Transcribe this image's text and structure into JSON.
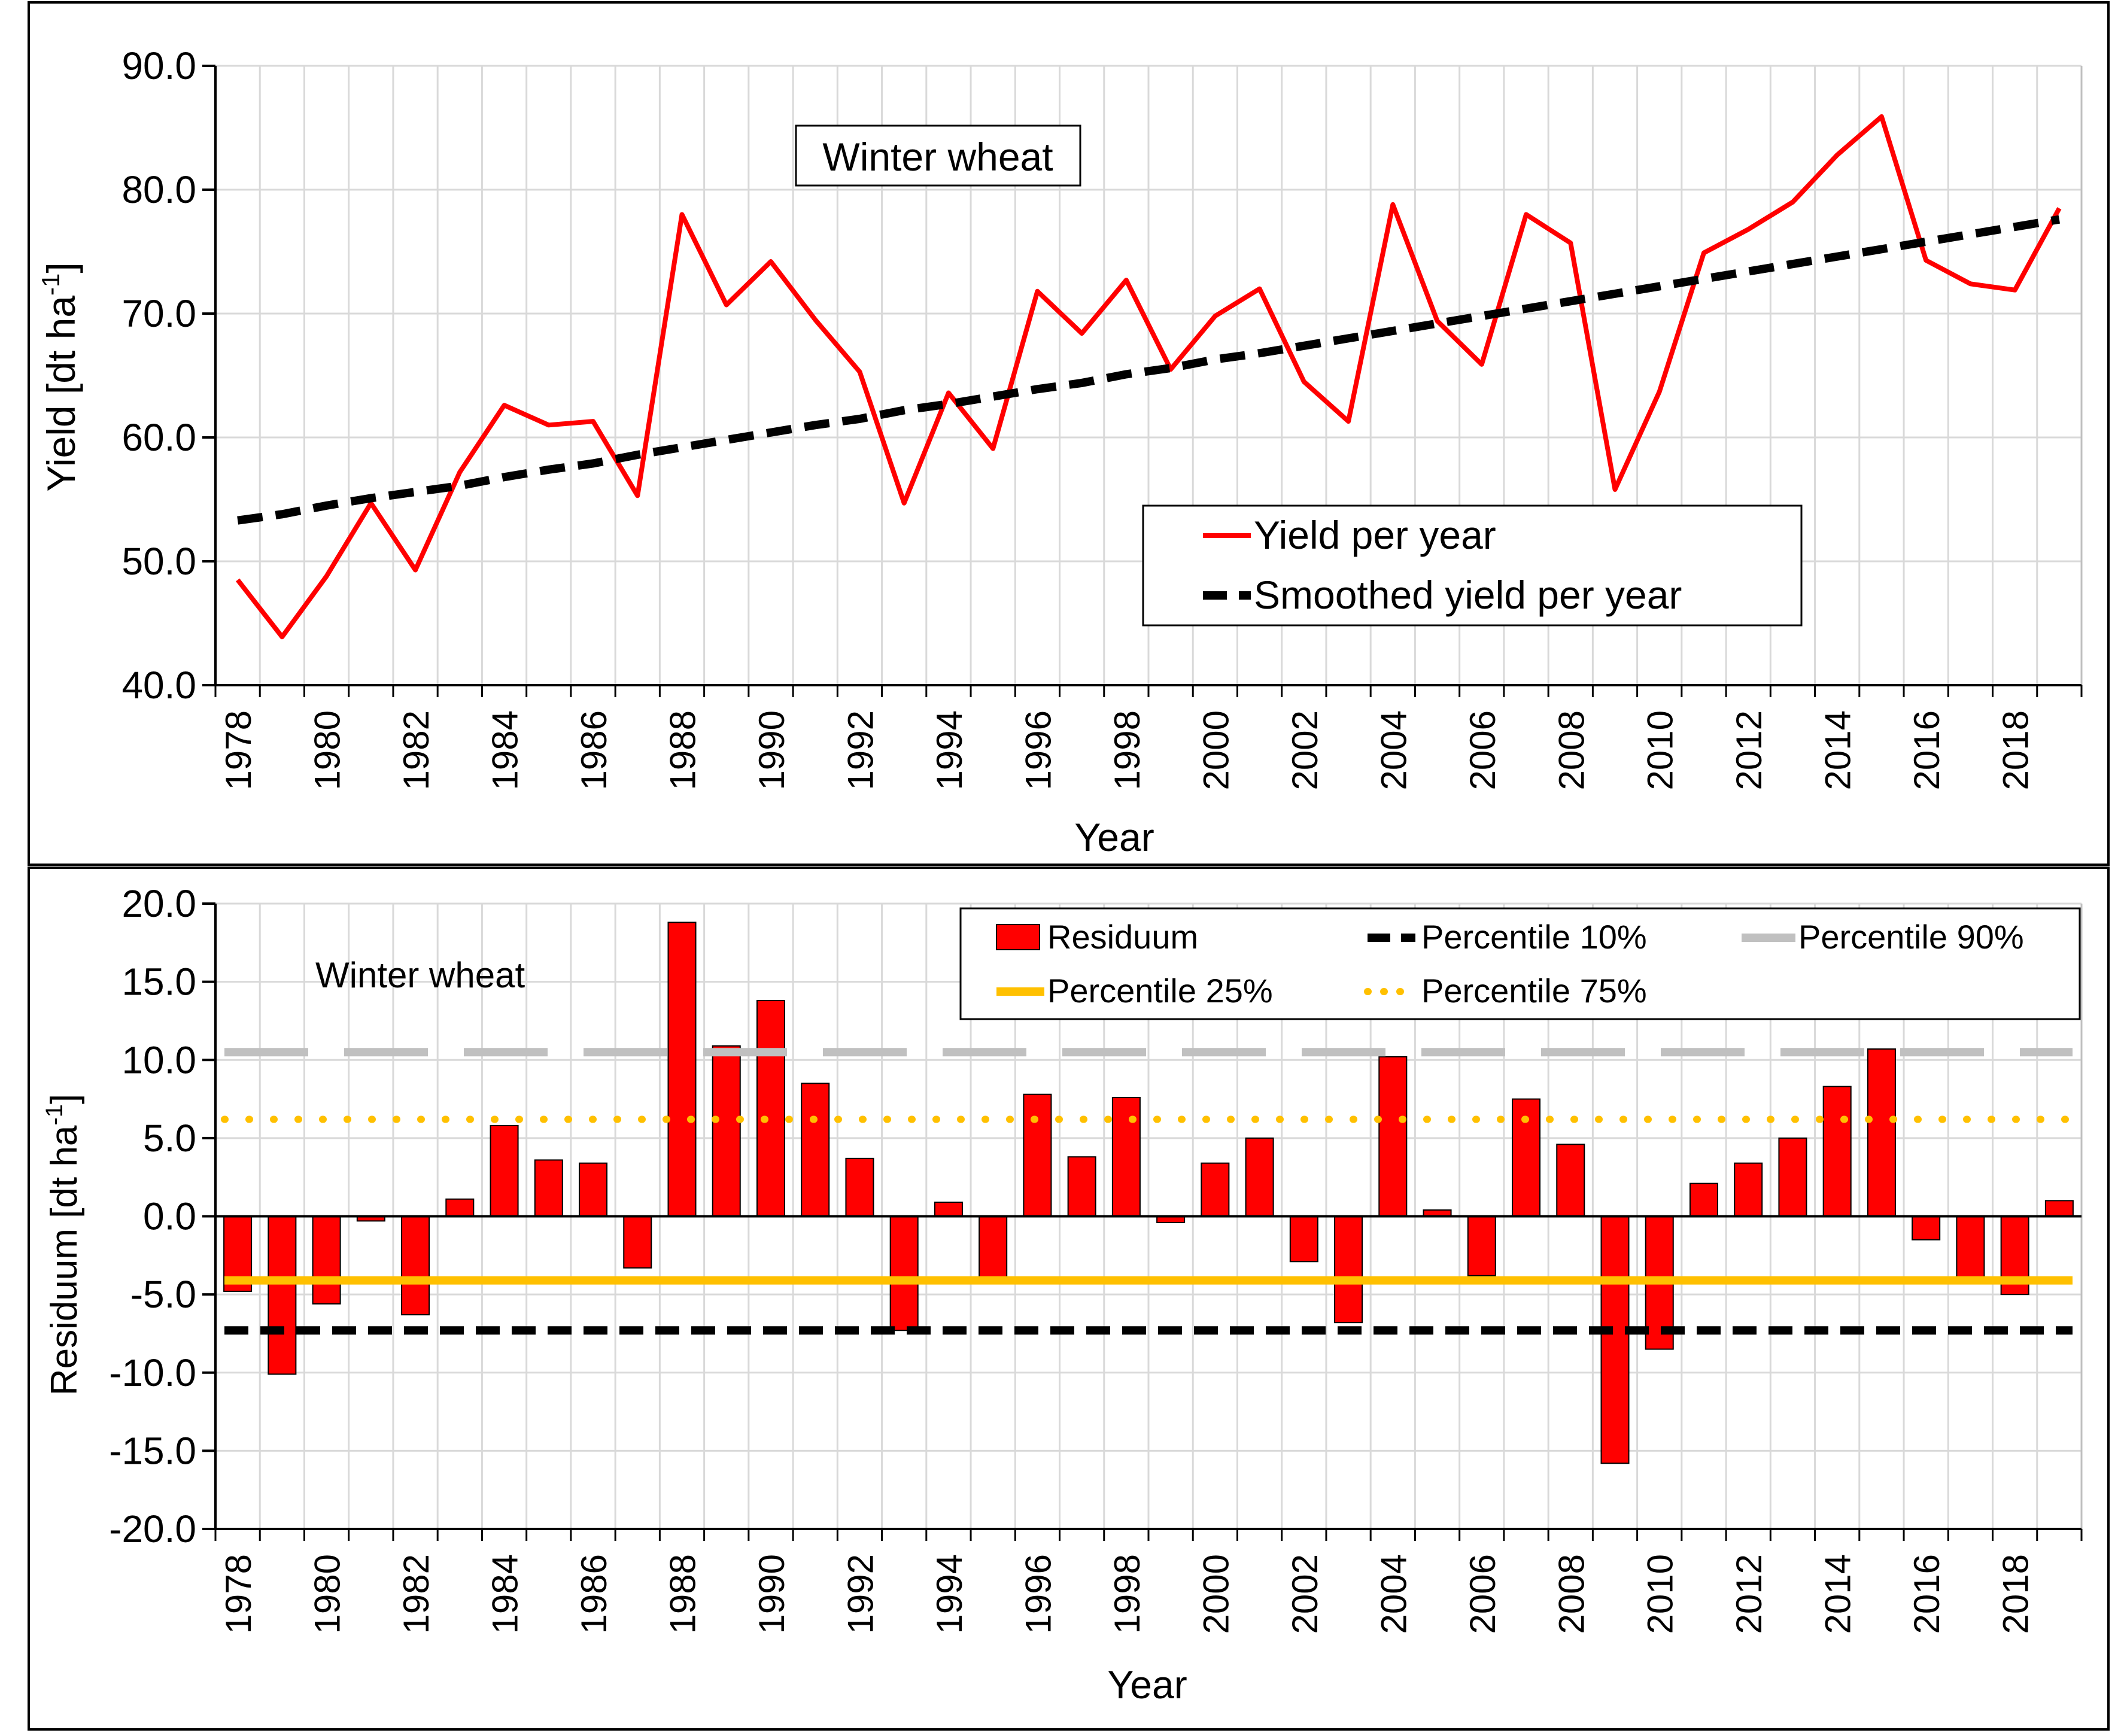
{
  "colors": {
    "yield": "#ff0000",
    "smoothed": "#000000",
    "residuum_fill": "#ff0000",
    "residuum_stroke": "#000000",
    "p10": "#000000",
    "p25": "#ffc000",
    "p75": "#ffc000",
    "p90": "#c0c0c0",
    "grid": "#d9d9d9"
  },
  "years": [
    1978,
    1979,
    1980,
    1981,
    1982,
    1983,
    1984,
    1985,
    1986,
    1987,
    1988,
    1989,
    1990,
    1991,
    1992,
    1993,
    1994,
    1995,
    1996,
    1997,
    1998,
    1999,
    2000,
    2001,
    2002,
    2003,
    2004,
    2005,
    2006,
    2007,
    2008,
    2009,
    2010,
    2011,
    2012,
    2013,
    2014,
    2015,
    2016,
    2017,
    2018,
    2019
  ],
  "tick_years": [
    "1978",
    "1980",
    "1982",
    "1984",
    "1986",
    "1988",
    "1990",
    "1992",
    "1994",
    "1996",
    "1998",
    "2000",
    "2002",
    "2004",
    "2006",
    "2008",
    "2010",
    "2012",
    "2014",
    "2016",
    "2018"
  ],
  "chart_data": [
    {
      "type": "line",
      "annotation": "Winter wheat",
      "xlabel": "Year",
      "ylabel_main": "Yield [dt ha",
      "ylabel_sup": "-1",
      "ylabel_end": "]",
      "ylim": [
        40,
        90
      ],
      "yticks": [
        "40.0",
        "50.0",
        "60.0",
        "70.0",
        "80.0",
        "90.0"
      ],
      "legend": "bottom-right",
      "grid": true,
      "series": [
        {
          "name": "Yield per year",
          "values": [
            48.5,
            43.9,
            48.8,
            54.7,
            49.3,
            57.2,
            62.6,
            61.0,
            61.3,
            55.3,
            78.0,
            70.7,
            74.2,
            69.5,
            65.3,
            54.7,
            63.6,
            59.1,
            71.8,
            68.4,
            72.7,
            65.5,
            69.8,
            72.0,
            64.5,
            61.3,
            78.8,
            69.4,
            65.9,
            78.0,
            75.7,
            55.8,
            63.7,
            74.9,
            76.8,
            79.0,
            82.8,
            85.9,
            74.3,
            72.4,
            71.9,
            78.5
          ]
        },
        {
          "name": "Smoothed yield per year",
          "values": [
            53.3,
            53.8,
            54.5,
            55.1,
            55.6,
            56.1,
            56.8,
            57.4,
            57.9,
            58.6,
            59.2,
            59.8,
            60.4,
            61.0,
            61.5,
            62.2,
            62.7,
            63.3,
            63.9,
            64.4,
            65.1,
            65.6,
            66.3,
            66.8,
            67.4,
            68.0,
            68.6,
            69.2,
            69.8,
            70.4,
            71.0,
            71.6,
            72.2,
            72.8,
            73.4,
            74.0,
            74.6,
            75.2,
            75.8,
            76.4,
            77.0,
            77.6
          ]
        }
      ]
    },
    {
      "type": "bar",
      "annotation": "Winter wheat",
      "xlabel": "Year",
      "ylabel_main": "Residuum [dt ha",
      "ylabel_sup": "-1",
      "ylabel_end": "]",
      "ylim": [
        -20,
        20
      ],
      "yticks": [
        "-20.0",
        "-15.0",
        "-10.0",
        "-5.0",
        "0.0",
        "5.0",
        "10.0",
        "15.0",
        "20.0"
      ],
      "legend": "top-right",
      "grid": true,
      "series": [
        {
          "name": "Residuum",
          "values": [
            -4.8,
            -10.1,
            -5.6,
            -0.3,
            -6.3,
            1.1,
            5.8,
            3.6,
            3.4,
            -3.3,
            18.8,
            10.9,
            13.8,
            8.5,
            3.7,
            -7.3,
            0.9,
            -3.9,
            7.8,
            3.8,
            7.6,
            -0.4,
            3.4,
            5.0,
            -2.9,
            -6.8,
            10.2,
            0.4,
            -3.8,
            7.5,
            4.6,
            -15.8,
            -8.5,
            2.1,
            3.4,
            5.0,
            8.3,
            10.7,
            -1.5,
            -3.9,
            -5.0,
            1.0
          ]
        }
      ],
      "percentiles": [
        {
          "name": "Percentile 10%",
          "value": -7.3
        },
        {
          "name": "Percentile 25%",
          "value": -4.1
        },
        {
          "name": "Percentile 75%",
          "value": 6.2
        },
        {
          "name": "Percentile 90%",
          "value": 10.5
        }
      ]
    }
  ]
}
